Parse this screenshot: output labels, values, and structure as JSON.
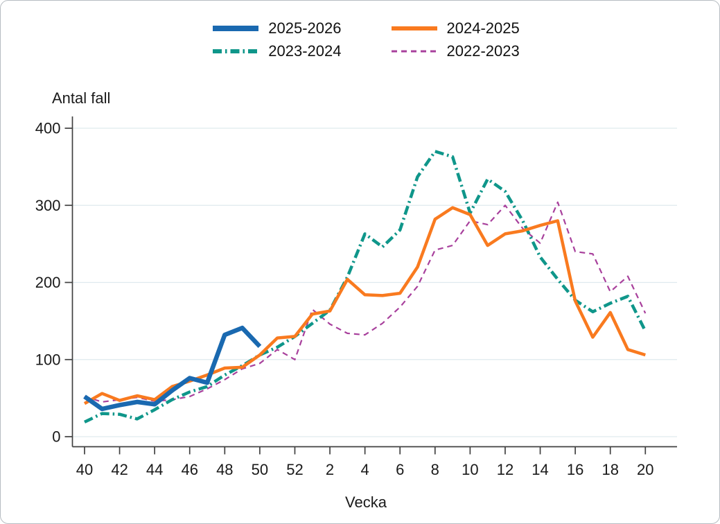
{
  "chart_data": {
    "type": "line",
    "title": "",
    "x_axis": {
      "label": "Vecka",
      "categories": [
        "40",
        "41",
        "42",
        "43",
        "44",
        "45",
        "46",
        "47",
        "48",
        "49",
        "50",
        "51",
        "52",
        "1",
        "2",
        "3",
        "4",
        "5",
        "6",
        "7",
        "8",
        "9",
        "10",
        "11",
        "12",
        "13",
        "14",
        "15",
        "16",
        "17",
        "18",
        "19",
        "20"
      ],
      "tick_labels": [
        "40",
        "42",
        "44",
        "46",
        "48",
        "50",
        "52",
        "2",
        "4",
        "6",
        "8",
        "10",
        "12",
        "14",
        "16",
        "18",
        "20"
      ]
    },
    "y_axis": {
      "label": "Antal fall",
      "ticks": [
        0,
        100,
        200,
        300,
        400
      ],
      "range": [
        0,
        400
      ]
    },
    "grid": "horizontal",
    "legend_position": "top-center",
    "series": [
      {
        "name": "2025-2026",
        "color": "#1a69b0",
        "style": "solid-thick",
        "values": [
          52,
          36,
          41,
          45,
          42,
          60,
          76,
          70,
          132,
          141,
          117
        ]
      },
      {
        "name": "2024-2025",
        "color": "#f97a1f",
        "style": "solid",
        "values": [
          43,
          56,
          47,
          53,
          48,
          65,
          72,
          80,
          89,
          90,
          106,
          128,
          130,
          159,
          163,
          204,
          184,
          183,
          186,
          220,
          282,
          297,
          288,
          248,
          263,
          267,
          274,
          280,
          176,
          129,
          161,
          113,
          106
        ]
      },
      {
        "name": "2023-2024",
        "color": "#0f968a",
        "style": "dash-dot",
        "values": [
          19,
          30,
          29,
          23,
          35,
          48,
          58,
          65,
          80,
          92,
          106,
          116,
          130,
          147,
          164,
          207,
          263,
          246,
          268,
          337,
          370,
          363,
          290,
          334,
          318,
          280,
          233,
          204,
          177,
          162,
          173,
          182,
          137
        ]
      },
      {
        "name": "2022-2023",
        "color": "#a8409c",
        "style": "dashed",
        "values": [
          52,
          45,
          48,
          51,
          46,
          48,
          52,
          62,
          74,
          88,
          95,
          113,
          100,
          165,
          146,
          134,
          132,
          147,
          168,
          195,
          242,
          248,
          280,
          275,
          300,
          270,
          251,
          304,
          240,
          237,
          188,
          208,
          160
        ]
      }
    ],
    "style": {
      "grid_color": "#dfeaee",
      "axis_color": "#404040",
      "text_color": "#1a1a1a",
      "background": "#ffffff"
    }
  }
}
